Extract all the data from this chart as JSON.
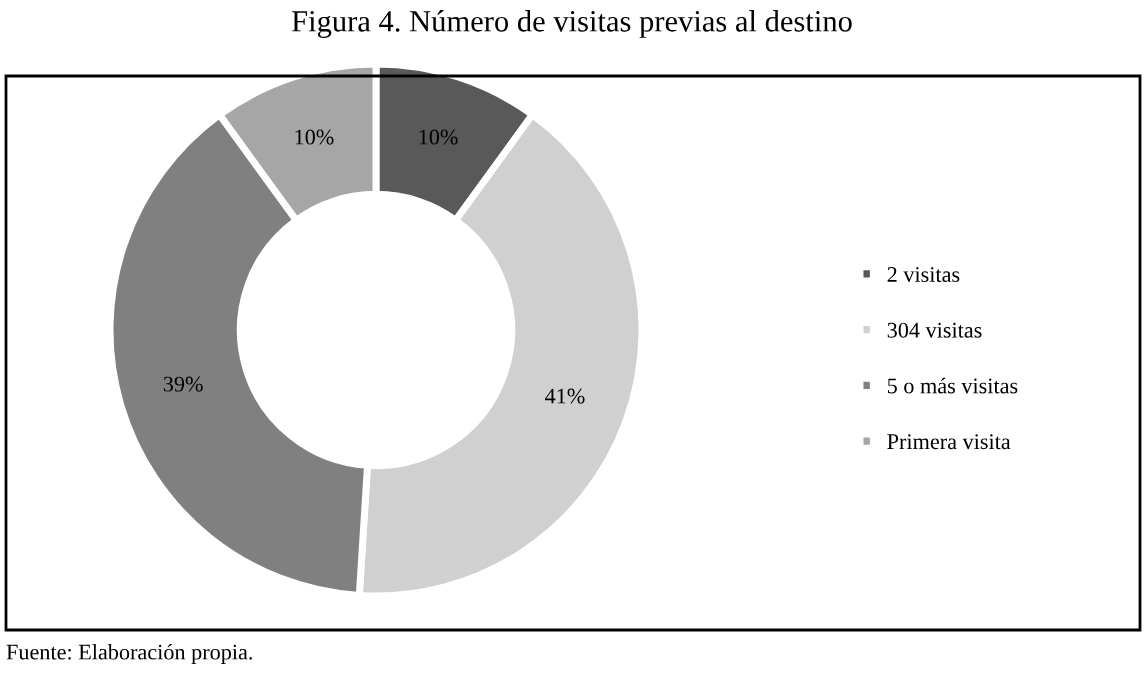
{
  "chart_data": {
    "type": "donut",
    "title": "Figura 4. Número de visitas previas al destino",
    "categories": [
      "2 visitas",
      "304 visitas",
      "5 o más visitas",
      "Primera visita"
    ],
    "values": [
      10,
      41,
      39,
      10
    ],
    "colors": [
      "#595959",
      "#d0d0d0",
      "#808080",
      "#a6a6a6"
    ],
    "value_labels": [
      "10%",
      "41%",
      "39%",
      "10%"
    ],
    "legend": "right",
    "annotations": [
      "Fuente: Elaboración propia."
    ]
  }
}
